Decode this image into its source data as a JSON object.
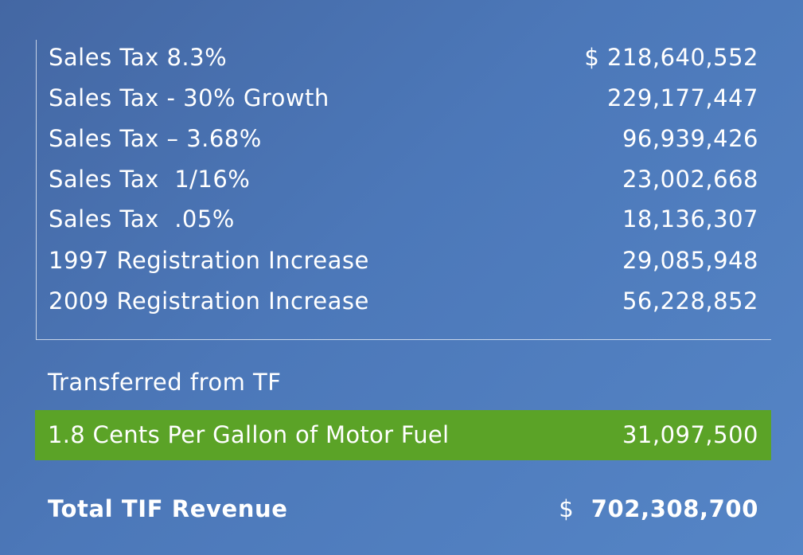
{
  "revenue_items": [
    {
      "label": "Sales Tax 8.3%",
      "value": "$ 218,640,552"
    },
    {
      "label": "Sales Tax - 30% Growth",
      "value": "229,177,447"
    },
    {
      "label": "Sales Tax – 3.68%",
      "value": "96,939,426"
    },
    {
      "label": "Sales Tax  1/16%",
      "value": "23,002,668"
    },
    {
      "label": "Sales Tax  .05%",
      "value": "18,136,307"
    },
    {
      "label": "1997 Registration Increase",
      "value": "29,085,948"
    },
    {
      "label": "2009 Registration Increase",
      "value": "56,228,852"
    }
  ],
  "transfer_section": {
    "title": "Transferred from TF",
    "item_label": "1.8 Cents Per Gallon of Motor Fuel",
    "item_value": "31,097,500",
    "highlight_color": "#5ba327"
  },
  "total": {
    "label": "Total TIF Revenue",
    "currency": "$",
    "value": "702,308,700"
  }
}
